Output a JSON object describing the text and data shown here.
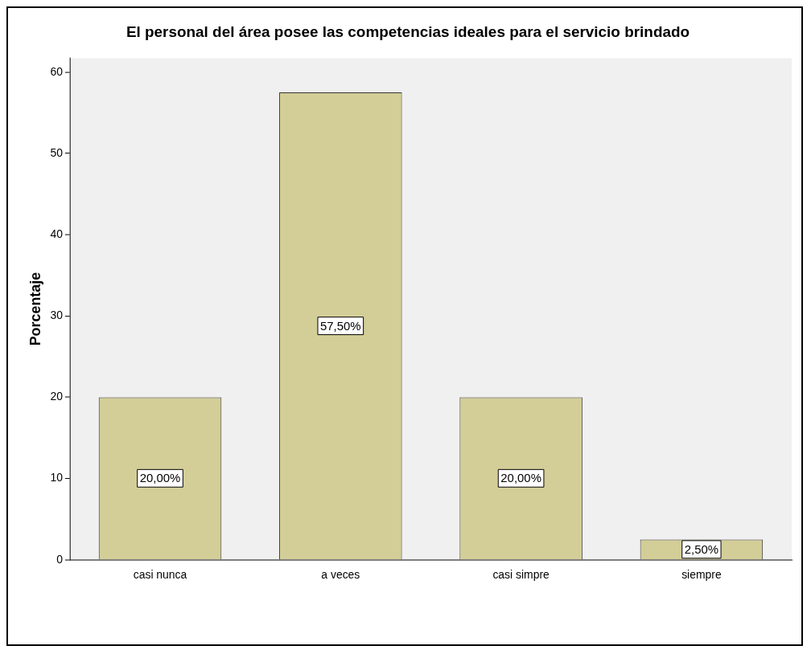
{
  "chart_data": {
    "type": "bar",
    "title": "El personal del área posee las competencias ideales para el servicio brindado",
    "ylabel": "Porcentaje",
    "categories": [
      "casi nunca",
      "a veces",
      "casi simpre",
      "siempre"
    ],
    "values": [
      20,
      57.5,
      20,
      2.5
    ],
    "value_labels": [
      "20,00%",
      "57,50%",
      "20,00%",
      "2,50%"
    ],
    "color": "#d3ce97",
    "ylim": [
      0,
      61.7
    ],
    "yticks": [
      0,
      10,
      20,
      30,
      40,
      50,
      60
    ],
    "grid": false
  }
}
